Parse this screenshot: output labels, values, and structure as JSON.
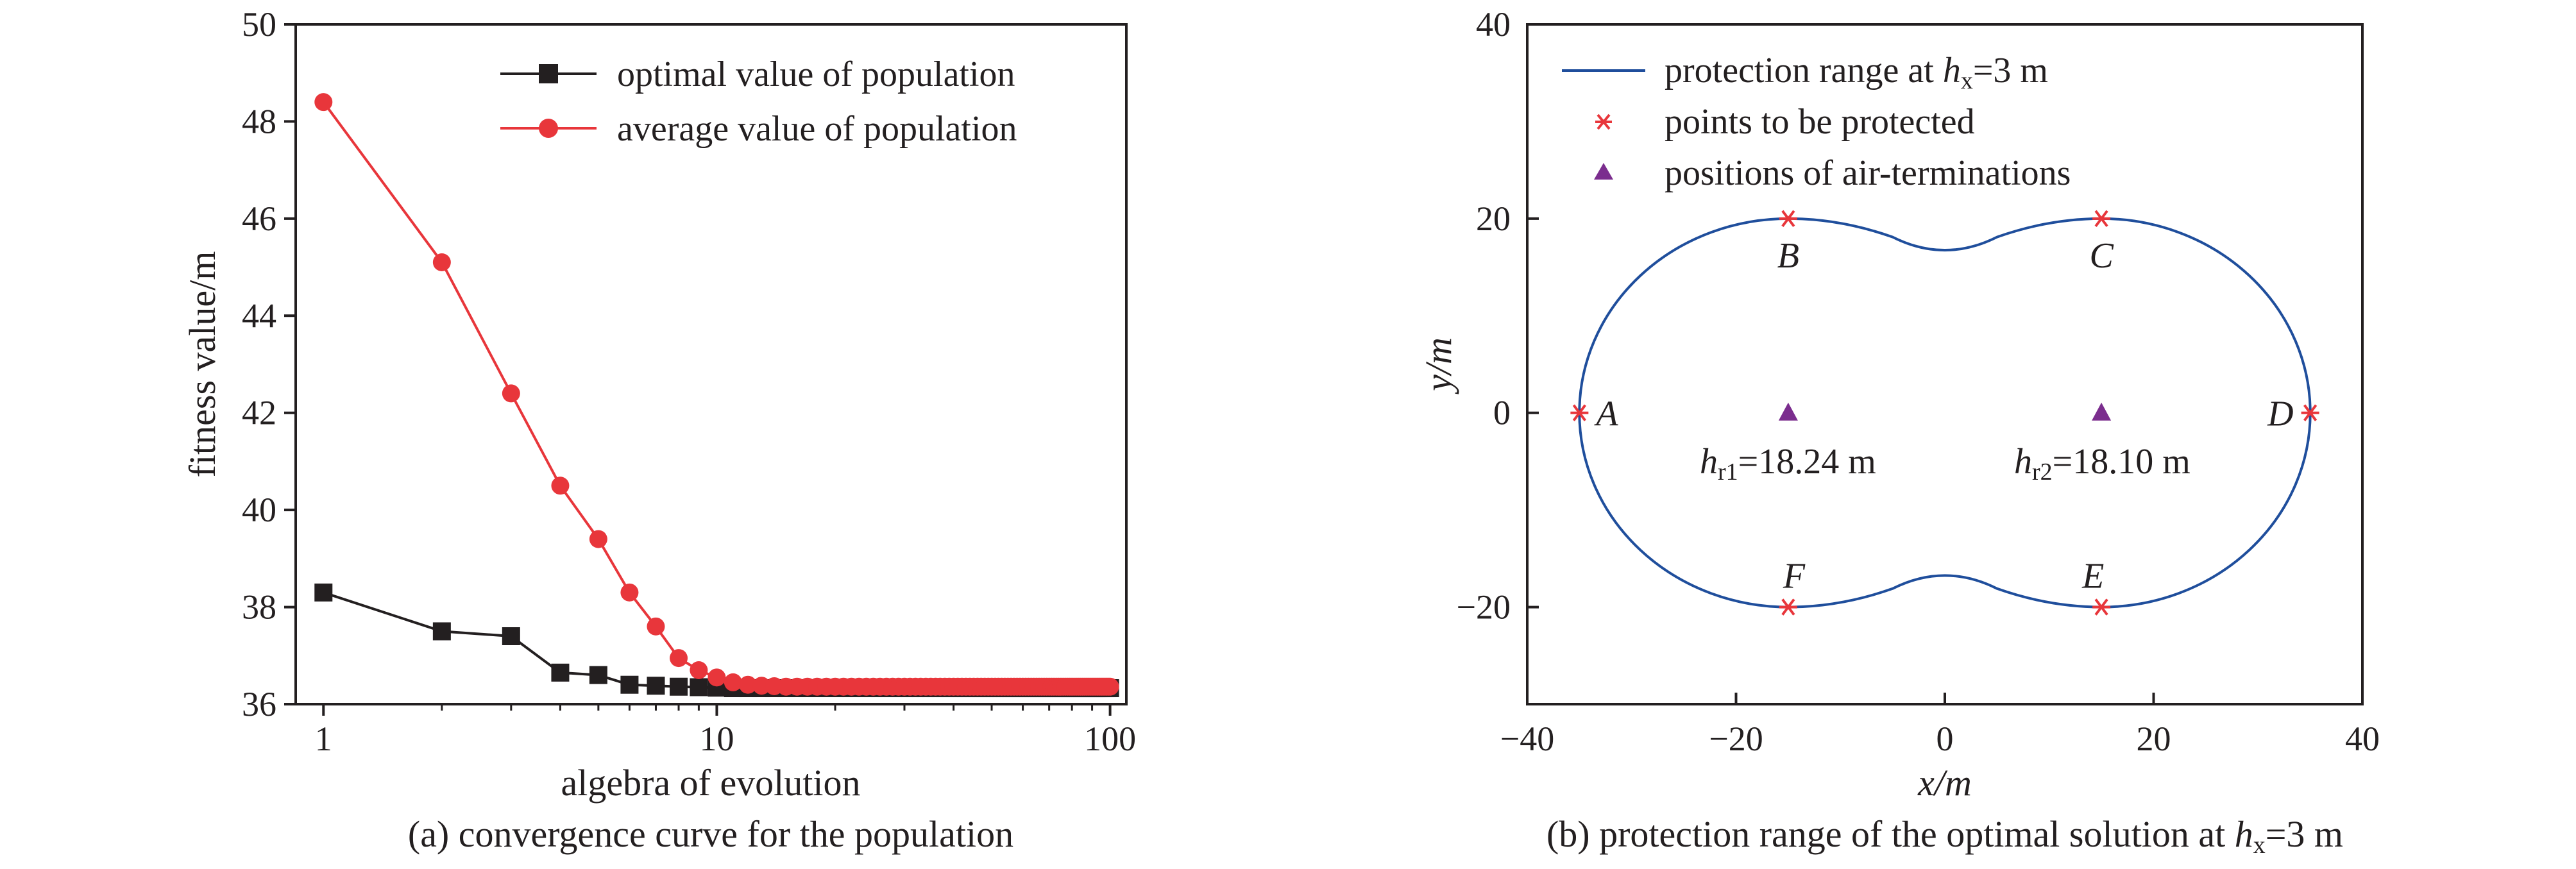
{
  "chart_data": [
    {
      "id": "a",
      "type": "line",
      "xscale": "log",
      "xlabel": "algebra of evolution",
      "ylabel": "fitness value/m",
      "caption": "(a) convergence curve for the population",
      "xlim": [
        0.85,
        110
      ],
      "ylim": [
        36,
        50
      ],
      "xticks": [
        1,
        10,
        100
      ],
      "xtick_labels": [
        "1",
        "10",
        "100"
      ],
      "yticks": [
        36,
        38,
        40,
        42,
        44,
        46,
        48,
        50
      ],
      "ytick_labels": [
        "36",
        "38",
        "40",
        "42",
        "44",
        "46",
        "48",
        "50"
      ],
      "legend_position": "top-right",
      "series": [
        {
          "name": "optimal value of population",
          "color": "#231f20",
          "marker": "square",
          "x": [
            1,
            2,
            3,
            4,
            5,
            6,
            7,
            8,
            9,
            10,
            11,
            12,
            13,
            14,
            15,
            16,
            17,
            18,
            19,
            20,
            21,
            22,
            23,
            24,
            25,
            26,
            27,
            28,
            29,
            30,
            31,
            32,
            33,
            34,
            35,
            36,
            37,
            38,
            39,
            40,
            41,
            42,
            43,
            44,
            45,
            46,
            47,
            48,
            49,
            50,
            51,
            52,
            53,
            54,
            55,
            56,
            57,
            58,
            59,
            60,
            61,
            62,
            63,
            64,
            65,
            66,
            67,
            68,
            69,
            70,
            71,
            72,
            73,
            74,
            75,
            76,
            77,
            78,
            79,
            80,
            81,
            82,
            83,
            84,
            85,
            86,
            87,
            88,
            89,
            90,
            91,
            92,
            93,
            94,
            95,
            96,
            97,
            98,
            99,
            100
          ],
          "values": [
            38.3,
            37.5,
            37.4,
            36.65,
            36.6,
            36.4,
            36.38,
            36.36,
            36.35,
            36.34,
            36.33,
            36.33,
            36.33,
            36.33,
            36.33,
            36.33,
            36.33,
            36.33,
            36.33,
            36.33,
            36.33,
            36.33,
            36.33,
            36.33,
            36.33,
            36.33,
            36.33,
            36.33,
            36.33,
            36.33,
            36.33,
            36.33,
            36.33,
            36.33,
            36.33,
            36.33,
            36.33,
            36.33,
            36.33,
            36.33,
            36.33,
            36.33,
            36.33,
            36.33,
            36.33,
            36.33,
            36.33,
            36.33,
            36.33,
            36.33,
            36.33,
            36.33,
            36.33,
            36.33,
            36.33,
            36.33,
            36.33,
            36.33,
            36.33,
            36.33,
            36.33,
            36.33,
            36.33,
            36.33,
            36.33,
            36.33,
            36.33,
            36.33,
            36.33,
            36.33,
            36.33,
            36.33,
            36.33,
            36.33,
            36.33,
            36.33,
            36.33,
            36.33,
            36.33,
            36.33,
            36.33,
            36.33,
            36.33,
            36.33,
            36.33,
            36.33,
            36.33,
            36.33,
            36.33,
            36.33,
            36.33,
            36.33,
            36.33,
            36.33,
            36.33,
            36.33,
            36.33,
            36.33,
            36.33,
            36.33
          ]
        },
        {
          "name": "average value of population",
          "color": "#e8363b",
          "marker": "circle",
          "x": [
            1,
            2,
            3,
            4,
            5,
            6,
            7,
            8,
            9,
            10,
            11,
            12,
            13,
            14,
            15,
            16,
            17,
            18,
            19,
            20,
            21,
            22,
            23,
            24,
            25,
            26,
            27,
            28,
            29,
            30,
            31,
            32,
            33,
            34,
            35,
            36,
            37,
            38,
            39,
            40,
            41,
            42,
            43,
            44,
            45,
            46,
            47,
            48,
            49,
            50,
            51,
            52,
            53,
            54,
            55,
            56,
            57,
            58,
            59,
            60,
            61,
            62,
            63,
            64,
            65,
            66,
            67,
            68,
            69,
            70,
            71,
            72,
            73,
            74,
            75,
            76,
            77,
            78,
            79,
            80,
            81,
            82,
            83,
            84,
            85,
            86,
            87,
            88,
            89,
            90,
            91,
            92,
            93,
            94,
            95,
            96,
            97,
            98,
            99,
            100
          ],
          "values": [
            48.4,
            45.1,
            42.4,
            40.5,
            39.4,
            38.3,
            37.6,
            36.95,
            36.7,
            36.55,
            36.45,
            36.4,
            36.38,
            36.37,
            36.36,
            36.36,
            36.36,
            36.36,
            36.36,
            36.36,
            36.36,
            36.36,
            36.36,
            36.36,
            36.36,
            36.36,
            36.36,
            36.36,
            36.36,
            36.36,
            36.36,
            36.36,
            36.36,
            36.36,
            36.36,
            36.36,
            36.36,
            36.36,
            36.36,
            36.36,
            36.36,
            36.36,
            36.36,
            36.36,
            36.36,
            36.36,
            36.36,
            36.36,
            36.36,
            36.36,
            36.36,
            36.36,
            36.36,
            36.36,
            36.36,
            36.36,
            36.36,
            36.36,
            36.36,
            36.36,
            36.36,
            36.36,
            36.36,
            36.36,
            36.36,
            36.36,
            36.36,
            36.36,
            36.36,
            36.36,
            36.36,
            36.36,
            36.36,
            36.36,
            36.36,
            36.36,
            36.36,
            36.36,
            36.36,
            36.36,
            36.36,
            36.36,
            36.36,
            36.36,
            36.36,
            36.36,
            36.36,
            36.36,
            36.36,
            36.36,
            36.36,
            36.36,
            36.36,
            36.36,
            36.36,
            36.36,
            36.36,
            36.36,
            36.36,
            36.36
          ]
        }
      ]
    },
    {
      "id": "b",
      "type": "scatter",
      "xlabel": "x/m",
      "ylabel": "y/m",
      "caption_pre": "(b) protection range of the optimal solution at ",
      "caption_h": "h",
      "caption_sub": "x",
      "caption_post": "=3 m",
      "xlim": [
        -40,
        40
      ],
      "ylim": [
        -30,
        40
      ],
      "xticks": [
        -40,
        -20,
        0,
        20,
        40
      ],
      "xtick_labels": [
        "−40",
        "−20",
        "0",
        "20",
        "40"
      ],
      "yticks": [
        -20,
        0,
        20,
        40
      ],
      "ytick_labels": [
        "−20",
        "0",
        "20",
        "40"
      ],
      "legend_position": "top-left",
      "legend": [
        {
          "h": "h",
          "sub": "x",
          "pre": "protection range at ",
          "post": "=3 m",
          "color": "#1f4e9c"
        },
        {
          "label": "points to be protected",
          "color": "#e8363b"
        },
        {
          "label": "positions of air-terminations",
          "color": "#7b2d8e"
        }
      ],
      "protection_range": {
        "circles": [
          {
            "cx": -15,
            "cy": 0,
            "r": 20
          },
          {
            "cx": 15,
            "cy": 0,
            "r": 20
          }
        ],
        "waist_y": 16.6,
        "color": "#1f4e9c"
      },
      "points": [
        {
          "name": "A",
          "x": -35,
          "y": 0
        },
        {
          "name": "B",
          "x": -15,
          "y": 20
        },
        {
          "name": "C",
          "x": 15,
          "y": 20
        },
        {
          "name": "D",
          "x": 35,
          "y": 0
        },
        {
          "name": "E",
          "x": 15,
          "y": -20
        },
        {
          "name": "F",
          "x": -15,
          "y": -20
        }
      ],
      "air_terminations": [
        {
          "x": -15,
          "y": 0,
          "h": "h",
          "sub": "r1",
          "value": "=18.24 m"
        },
        {
          "x": 15,
          "y": 0,
          "h": "h",
          "sub": "r2",
          "value": "=18.10 m"
        }
      ]
    }
  ]
}
